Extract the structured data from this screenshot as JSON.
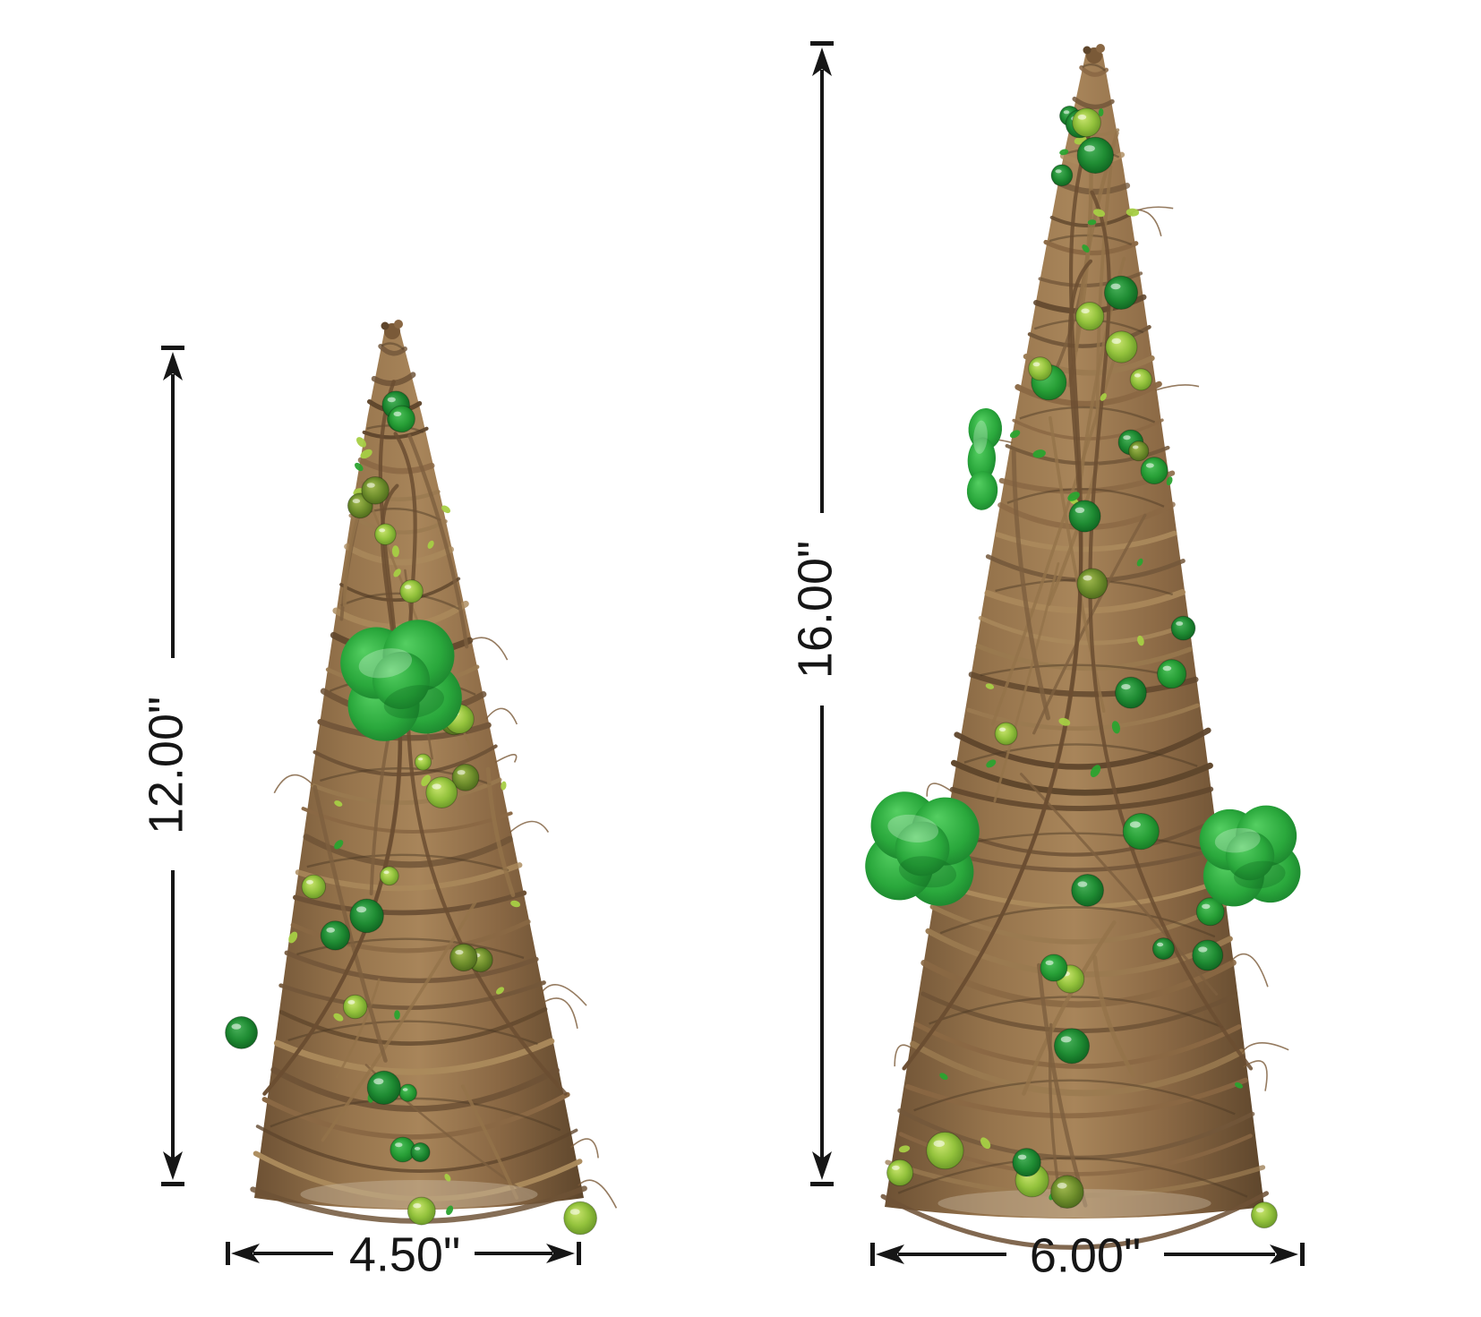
{
  "page": {
    "background": "#ffffff"
  },
  "figure": {
    "type": "product-dimension-diagram",
    "items": [
      {
        "id": "small-tree",
        "name": "rattan-cone-tree-small",
        "height_label": "12.00\"",
        "width_label": "4.50\""
      },
      {
        "id": "large-tree",
        "name": "rattan-cone-tree-large",
        "height_label": "16.00\"",
        "width_label": "6.00\""
      }
    ],
    "colors": {
      "dimension_line": "#161616",
      "twig_brown": "#8a6844",
      "twig_dark": "#5f462c",
      "twig_light": "#ab8a5c",
      "bead_dark_green": "#1f8c33",
      "bead_grass_green": "#28a037",
      "bead_light_green": "#93c23c",
      "bead_olive_green": "#6f8f2c",
      "shamrock_green": "#2aa83c"
    }
  }
}
